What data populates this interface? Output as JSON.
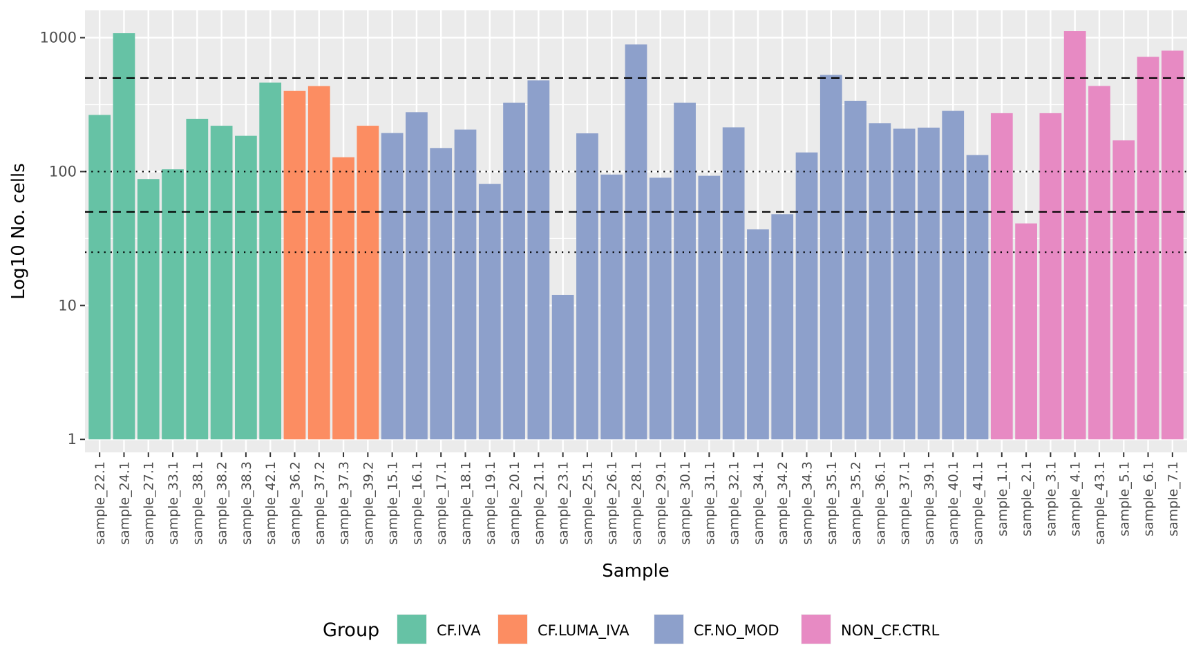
{
  "chart_data": {
    "type": "bar",
    "title": "",
    "xlabel": "Sample",
    "ylabel": "Log10 No. cells",
    "yscale": "log10",
    "ylim": [
      0.8,
      1600
    ],
    "y_ticks": [
      1,
      10,
      100,
      1000
    ],
    "y_tick_labels": [
      "1",
      "10",
      "100",
      "1000"
    ],
    "bar_base": 1,
    "grid": true,
    "reference_lines": [
      {
        "value": 500,
        "style": "dashed"
      },
      {
        "value": 100,
        "style": "dotted"
      },
      {
        "value": 50,
        "style": "dashed"
      },
      {
        "value": 25,
        "style": "dotted"
      }
    ],
    "legend": {
      "title": "Group",
      "position": "bottom",
      "entries": [
        {
          "label": "CF.IVA",
          "color": "#66c2a5"
        },
        {
          "label": "CF.LUMA_IVA",
          "color": "#fc8d62"
        },
        {
          "label": "CF.NO_MOD",
          "color": "#8da0cb"
        },
        {
          "label": "NON_CF.CTRL",
          "color": "#e78ac3"
        }
      ]
    },
    "bars": [
      {
        "sample": "sample_22.1",
        "group": "CF.IVA",
        "value": 265
      },
      {
        "sample": "sample_24.1",
        "group": "CF.IVA",
        "value": 1080
      },
      {
        "sample": "sample_27.1",
        "group": "CF.IVA",
        "value": 88
      },
      {
        "sample": "sample_33.1",
        "group": "CF.IVA",
        "value": 104
      },
      {
        "sample": "sample_38.1",
        "group": "CF.IVA",
        "value": 248
      },
      {
        "sample": "sample_38.2",
        "group": "CF.IVA",
        "value": 220
      },
      {
        "sample": "sample_38.3",
        "group": "CF.IVA",
        "value": 185
      },
      {
        "sample": "sample_42.1",
        "group": "CF.IVA",
        "value": 462
      },
      {
        "sample": "sample_36.2",
        "group": "CF.LUMA_IVA",
        "value": 400
      },
      {
        "sample": "sample_37.2",
        "group": "CF.LUMA_IVA",
        "value": 435
      },
      {
        "sample": "sample_37.3",
        "group": "CF.LUMA_IVA",
        "value": 128
      },
      {
        "sample": "sample_39.2",
        "group": "CF.LUMA_IVA",
        "value": 220
      },
      {
        "sample": "sample_15.1",
        "group": "CF.NO_MOD",
        "value": 194
      },
      {
        "sample": "sample_16.1",
        "group": "CF.NO_MOD",
        "value": 278
      },
      {
        "sample": "sample_17.1",
        "group": "CF.NO_MOD",
        "value": 150
      },
      {
        "sample": "sample_18.1",
        "group": "CF.NO_MOD",
        "value": 206
      },
      {
        "sample": "sample_19.1",
        "group": "CF.NO_MOD",
        "value": 81
      },
      {
        "sample": "sample_20.1",
        "group": "CF.NO_MOD",
        "value": 327
      },
      {
        "sample": "sample_21.1",
        "group": "CF.NO_MOD",
        "value": 480
      },
      {
        "sample": "sample_23.1",
        "group": "CF.NO_MOD",
        "value": 12
      },
      {
        "sample": "sample_25.1",
        "group": "CF.NO_MOD",
        "value": 193
      },
      {
        "sample": "sample_26.1",
        "group": "CF.NO_MOD",
        "value": 95
      },
      {
        "sample": "sample_28.1",
        "group": "CF.NO_MOD",
        "value": 890
      },
      {
        "sample": "sample_29.1",
        "group": "CF.NO_MOD",
        "value": 90
      },
      {
        "sample": "sample_30.1",
        "group": "CF.NO_MOD",
        "value": 327
      },
      {
        "sample": "sample_31.1",
        "group": "CF.NO_MOD",
        "value": 93
      },
      {
        "sample": "sample_32.1",
        "group": "CF.NO_MOD",
        "value": 214
      },
      {
        "sample": "sample_34.1",
        "group": "CF.NO_MOD",
        "value": 37
      },
      {
        "sample": "sample_34.2",
        "group": "CF.NO_MOD",
        "value": 48
      },
      {
        "sample": "sample_34.3",
        "group": "CF.NO_MOD",
        "value": 139
      },
      {
        "sample": "sample_35.1",
        "group": "CF.NO_MOD",
        "value": 527
      },
      {
        "sample": "sample_35.2",
        "group": "CF.NO_MOD",
        "value": 338
      },
      {
        "sample": "sample_36.1",
        "group": "CF.NO_MOD",
        "value": 230
      },
      {
        "sample": "sample_37.1",
        "group": "CF.NO_MOD",
        "value": 209
      },
      {
        "sample": "sample_39.1",
        "group": "CF.NO_MOD",
        "value": 213
      },
      {
        "sample": "sample_40.1",
        "group": "CF.NO_MOD",
        "value": 284
      },
      {
        "sample": "sample_41.1",
        "group": "CF.NO_MOD",
        "value": 133
      },
      {
        "sample": "sample_1.1",
        "group": "NON_CF.CTRL",
        "value": 273
      },
      {
        "sample": "sample_2.1",
        "group": "NON_CF.CTRL",
        "value": 41
      },
      {
        "sample": "sample_3.1",
        "group": "NON_CF.CTRL",
        "value": 273
      },
      {
        "sample": "sample_4.1",
        "group": "NON_CF.CTRL",
        "value": 1120
      },
      {
        "sample": "sample_43.1",
        "group": "NON_CF.CTRL",
        "value": 436
      },
      {
        "sample": "sample_5.1",
        "group": "NON_CF.CTRL",
        "value": 171
      },
      {
        "sample": "sample_6.1",
        "group": "NON_CF.CTRL",
        "value": 720
      },
      {
        "sample": "sample_7.1",
        "group": "NON_CF.CTRL",
        "value": 800
      }
    ]
  }
}
